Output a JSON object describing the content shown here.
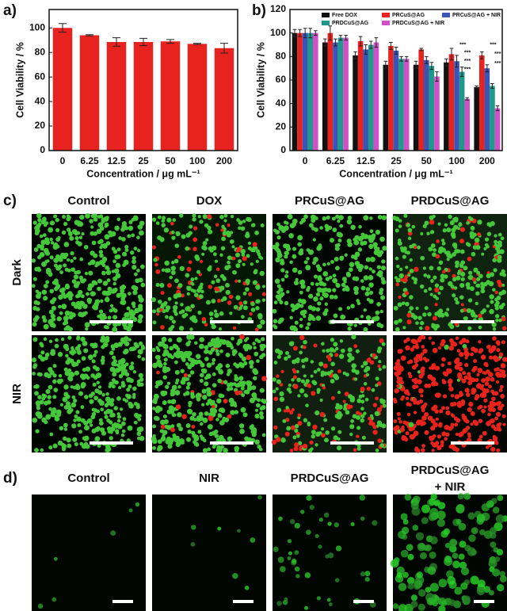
{
  "chart_data": [
    {
      "type": "bar",
      "panel": "a)",
      "categories": [
        "0",
        "6.25",
        "12.5",
        "25",
        "50",
        "100",
        "200"
      ],
      "values": [
        100,
        94,
        88.5,
        88.5,
        89,
        87,
        83.5
      ],
      "errors": [
        3.5,
        0.5,
        3.5,
        3,
        1.5,
        0.5,
        4
      ],
      "color": "#e8221f",
      "ylim": [
        0,
        115
      ],
      "yticks": [
        0,
        20,
        40,
        60,
        80,
        100
      ],
      "y_label": "Cell Viability / %",
      "x_label": "Concentration / μg mL⁻¹"
    },
    {
      "type": "bar",
      "panel": "b)",
      "categories": [
        "0",
        "6.25",
        "12.5",
        "25",
        "50",
        "100",
        "200"
      ],
      "series": [
        {
          "name": "Free DOX",
          "color": "#111111",
          "values": [
            100,
            92,
            81,
            73,
            73,
            75,
            54
          ],
          "errors": [
            3,
            3,
            3,
            3,
            3,
            3,
            1
          ]
        },
        {
          "name": "PRCuS@AG",
          "color": "#e8221f",
          "values": [
            100,
            100,
            93,
            89,
            86,
            82,
            81
          ],
          "errors": [
            3,
            6,
            4,
            3,
            1,
            5,
            3
          ]
        },
        {
          "name": "PRCuS@AG + NIR",
          "color": "#3a55b4",
          "values": [
            100,
            92,
            86,
            85,
            77,
            76,
            70
          ],
          "errors": [
            4,
            3,
            4,
            3,
            3,
            5,
            3
          ]
        },
        {
          "name": "PRDCuS@AG",
          "color": "#1f9a8a",
          "values": [
            100,
            96,
            90,
            78,
            72,
            67,
            55
          ],
          "errors": [
            4,
            2,
            3,
            2,
            3,
            4,
            2
          ]
        },
        {
          "name": "PRDCuS@AG + NIR",
          "color": "#d050c8",
          "values": [
            100,
            96,
            92,
            78,
            63,
            44,
            36
          ],
          "errors": [
            2,
            2,
            4,
            2,
            4,
            1,
            2
          ]
        }
      ],
      "ylim": [
        0,
        120
      ],
      "yticks": [
        0,
        20,
        40,
        60,
        80,
        100,
        120
      ],
      "legend": "upper right",
      "annotations": [
        "***",
        "***",
        "***",
        "***",
        "***",
        "***",
        "***"
      ],
      "y_label": "Cell Viability / %",
      "x_label": "Concentration / μg mL⁻¹"
    }
  ],
  "panel_c": {
    "label": "c)",
    "columns": [
      "Control",
      "DOX",
      "PRCuS@AG",
      "PRDCuS@AG"
    ],
    "rows": [
      "Dark",
      "NIR"
    ]
  },
  "panel_d": {
    "label": "d)",
    "columns": [
      "Control",
      "NIR",
      "PRDCuS@AG",
      "PRDCuS@AG\n+ NIR"
    ]
  }
}
